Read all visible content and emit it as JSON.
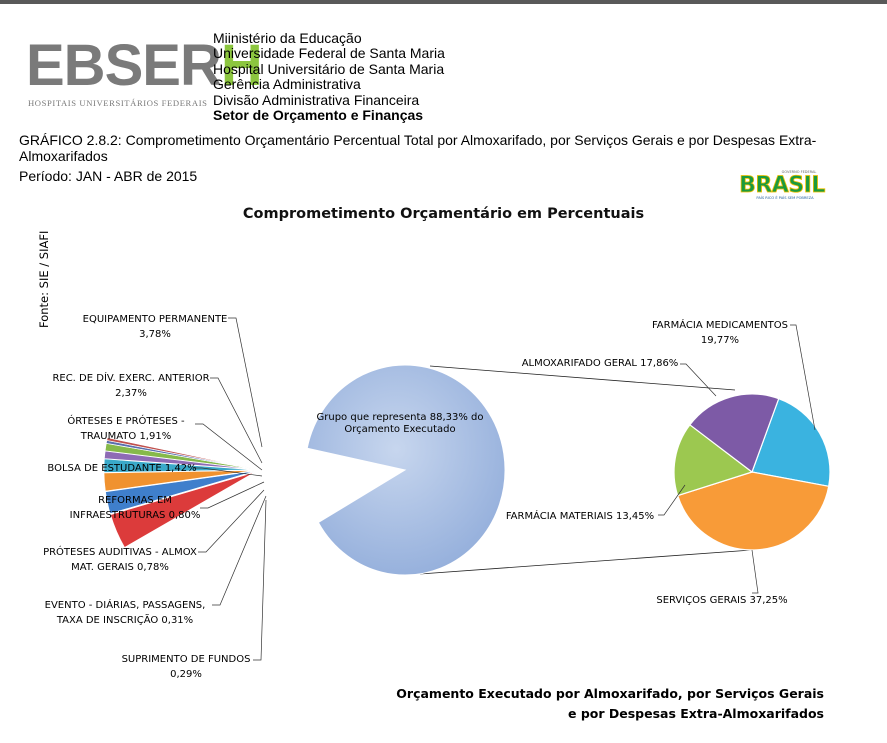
{
  "header": {
    "logo_text": "EBSERH",
    "logo_subtitle": "HOSPITAIS UNIVERSITÁRIOS FEDERAIS",
    "lines": [
      "Miinistério da Educação",
      "Universidade Federal de Santa Maria",
      "Hospital Universitário de Santa Maria",
      "Gerência Administrativa",
      "Divisão Administrativa Financeira"
    ],
    "sector": "Setor de Orçamento e Finanças",
    "grafico": "GRÁFICO 2.8.2: Comprometimento Orçamentário Percentual Total por Almoxarifado, por Serviços Gerais e por Despesas Extra-Almoxarifados",
    "periodo": "Período: JAN - ABR de 2015",
    "gov_logo": {
      "small_text": "GOVERNO FEDERAL",
      "word": "BRASIL",
      "tagline": "PAÍS RICO É PAÍS SEM POBREZA"
    }
  },
  "source": "Fonte: SIE / SIAFI",
  "footer": {
    "line1": "Orçamento Executado por Almoxarifado, por Serviços Gerais",
    "line2": "e por Despesas Extra-Almoxarifados"
  },
  "chart_data": {
    "type": "pie",
    "title": "Comprometimento Orçamentário em Percentuais",
    "group_label_lines": [
      "Grupo que representa  88,33% do",
      "Orçamento Executado"
    ],
    "main_pie": [
      {
        "label_lines": [
          "EQUIPAMENTO PERMANENTE",
          "3,78%"
        ],
        "value": 3.78,
        "color": "#dc3b3b"
      },
      {
        "label_lines": [
          "REC. DE DÍV. EXERC. ANTERIOR",
          "2,37%"
        ],
        "value": 2.37,
        "color": "#3f7fcc"
      },
      {
        "label_lines": [
          "ÓRTESES E PRÓTESES -",
          "TRAUMATO 1,91%"
        ],
        "value": 1.91,
        "color": "#f0922f"
      },
      {
        "label_lines": [
          "BOLSA DE ESTUDANTE 1,42%"
        ],
        "value": 1.42,
        "color": "#3aa9c9"
      },
      {
        "label_lines": [
          "REFORMAS EM",
          "INFRAESTRUTURAS 0,80%"
        ],
        "value": 0.8,
        "color": "#8e6bb5"
      },
      {
        "label_lines": [
          "PRÓTESES AUDITIVAS - ALMOX",
          "MAT. GERAIS 0,78%"
        ],
        "value": 0.78,
        "color": "#86b94a"
      },
      {
        "label_lines": [
          "EVENTO - DIÁRIAS, PASSAGENS,",
          "TAXA DE INSCRIÇÃO 0,31%"
        ],
        "value": 0.31,
        "color": "#5a6fae"
      },
      {
        "label_lines": [
          "SUPRIMENTO DE FUNDOS",
          "0,29%"
        ],
        "value": 0.29,
        "color": "#c0504d"
      },
      {
        "label_lines": [],
        "value": 88.33,
        "color": "#a7bde0",
        "group": true
      }
    ],
    "secondary_pie": [
      {
        "label_lines": [
          "FARMÁCIA MEDICAMENTOS",
          "19,77%"
        ],
        "value": 19.77,
        "color": "#3ab3e0"
      },
      {
        "label_lines": [
          "SERVIÇOS GERAIS 37,25%"
        ],
        "value": 37.25,
        "color": "#f89b38"
      },
      {
        "label_lines": [
          "FARMÁCIA MATERIAIS 13,45%"
        ],
        "value": 13.45,
        "color": "#9cc850"
      },
      {
        "label_lines": [
          "ALMOXARIFADO GERAL 17,86%"
        ],
        "value": 17.86,
        "color": "#7d5aa6"
      }
    ]
  }
}
